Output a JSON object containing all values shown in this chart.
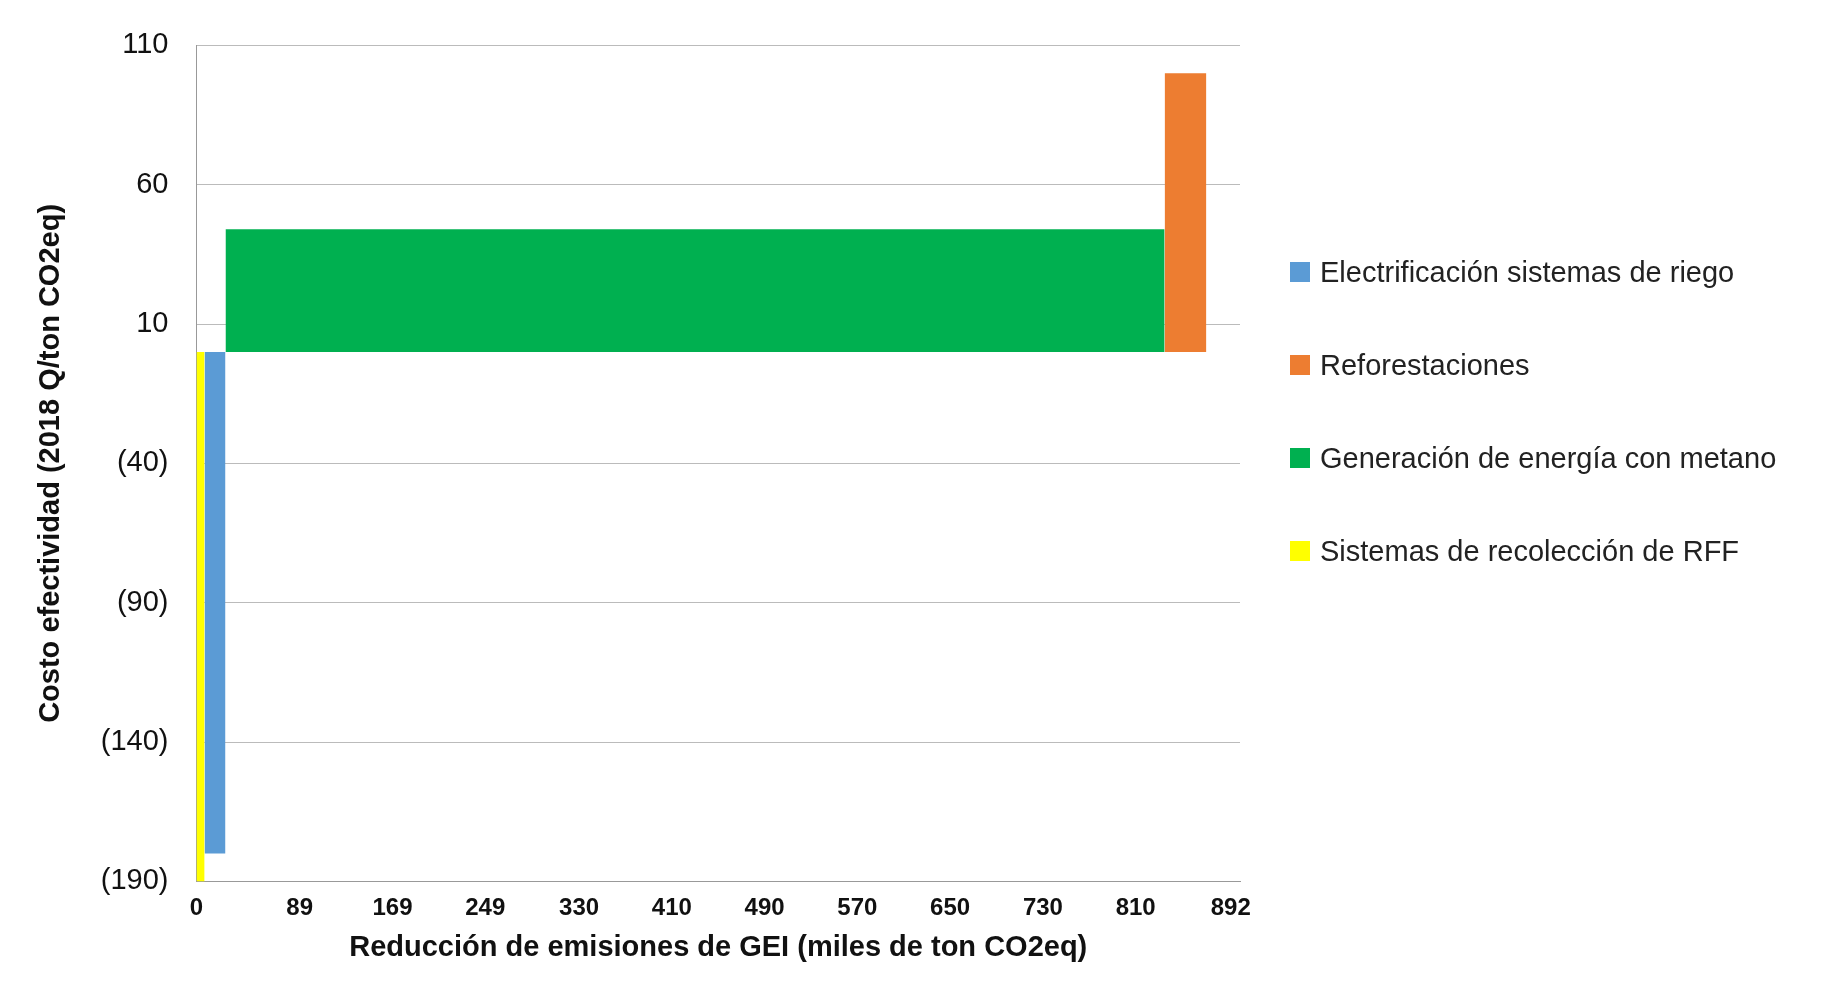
{
  "chart_data": {
    "type": "area",
    "xlabel": "Reducción de emisiones de GEI (miles de ton CO2eq)",
    "ylabel": "Costo efectividad (2018 Q/ton CO2eq)",
    "xlim": [
      0,
      900
    ],
    "xticks": [
      0,
      89,
      169,
      249,
      330,
      410,
      490,
      570,
      650,
      730,
      810,
      892
    ],
    "ylim": [
      -190,
      110
    ],
    "yticks": [
      110,
      60,
      10,
      {
        "value": -40,
        "label": "(40)"
      },
      {
        "value": -90,
        "label": "(90)"
      },
      {
        "value": -140,
        "label": "(140)"
      },
      {
        "value": -190,
        "label": "(190)"
      }
    ],
    "grid": "y",
    "legend": "right",
    "series": [
      {
        "name": "Electrificación sistemas de riego",
        "color": "#5b9bd5",
        "x": [
          7,
          25
        ],
        "values": [
          -180,
          -180
        ]
      },
      {
        "name": "Reforestaciones",
        "color": "#ed7d31",
        "x": [
          835,
          871
        ],
        "values": [
          100,
          100
        ]
      },
      {
        "name": "Generación de energía con metano",
        "color": "#00b050",
        "x": [
          25,
          835
        ],
        "values": [
          44,
          44
        ]
      },
      {
        "name": "Sistemas de recolección de RFF",
        "color": "#ffff00",
        "x": [
          0,
          7
        ],
        "values": [
          -190,
          -190
        ]
      }
    ]
  }
}
